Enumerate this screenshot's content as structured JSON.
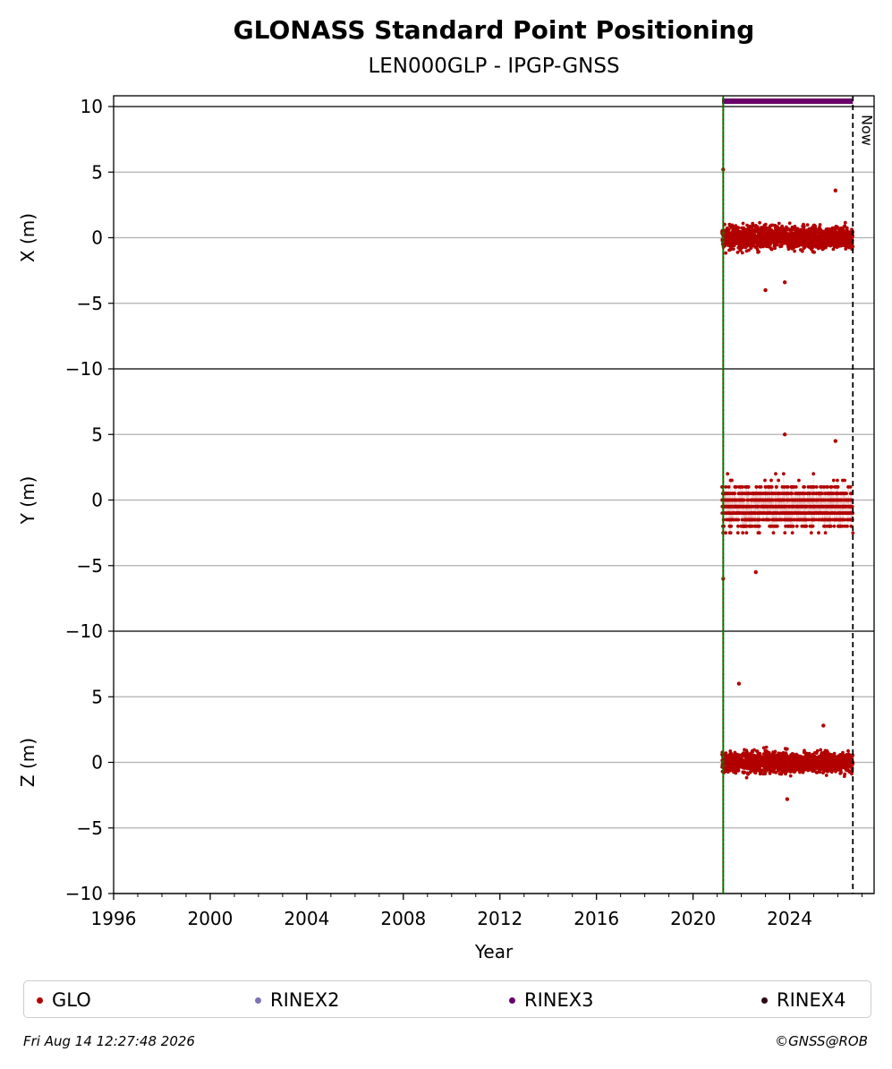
{
  "chart_data": {
    "type": "scatter",
    "title": "GLONASS Standard Point Positioning",
    "subtitle": "LEN000GLP - IPGP-GNSS",
    "xlabel": "Year",
    "xlim": [
      1996,
      2027.5
    ],
    "x_ticks": [
      "1996",
      "2000",
      "2004",
      "2008",
      "2012",
      "2016",
      "2020",
      "2024"
    ],
    "grid": "horizontal",
    "panels": [
      {
        "ylabel": "X (m)",
        "ylim": [
          -10,
          10
        ],
        "y_ticks": [
          "10",
          "5",
          "0",
          "−5",
          "−10"
        ],
        "center": 0.0,
        "spread": 0.8,
        "outliers": [
          [
            2021.25,
            5.2
          ],
          [
            2023.0,
            -4.0
          ],
          [
            2023.8,
            -3.4
          ],
          [
            2025.9,
            3.6
          ]
        ]
      },
      {
        "ylabel": "Y (m)",
        "ylim": [
          -10,
          10
        ],
        "y_ticks": [
          "5",
          "0",
          "−5",
          "−10"
        ],
        "center": -0.5,
        "spread": 1.5,
        "outliers": [
          [
            2021.25,
            -6.0
          ],
          [
            2023.8,
            5.0
          ],
          [
            2022.6,
            -5.5
          ],
          [
            2025.9,
            4.5
          ]
        ]
      },
      {
        "ylabel": "Z (m)",
        "ylim": [
          -10,
          10
        ],
        "y_ticks": [
          "5",
          "0",
          "−5",
          "−10"
        ],
        "center": 0.0,
        "spread": 0.7,
        "outliers": [
          [
            2021.9,
            6.0
          ],
          [
            2023.9,
            -2.8
          ],
          [
            2025.4,
            2.8
          ]
        ]
      }
    ],
    "series": [
      {
        "name": "GLO",
        "color": "#b20000",
        "x_range": [
          2021.2,
          2026.62
        ]
      },
      {
        "name": "RINEX3",
        "color": "#6a006a",
        "x_range": [
          2021.2,
          2026.62
        ],
        "y": 10.4
      }
    ],
    "markers": [
      {
        "x": 2021.25,
        "color": "#008000",
        "style": "solid"
      },
      {
        "x": 2026.62,
        "color": "#000000",
        "style": "dashed",
        "label": "Now"
      }
    ]
  },
  "legend": [
    {
      "name": "GLO",
      "color": "#b20000"
    },
    {
      "name": "RINEX2",
      "color": "#7b74b5"
    },
    {
      "name": "RINEX3",
      "color": "#6a006a"
    },
    {
      "name": "RINEX4",
      "color": "#2b0a18"
    }
  ],
  "footer": {
    "timestamp": "Fri Aug 14 12:27:48 2026",
    "copyright": "©GNSS@ROB"
  }
}
